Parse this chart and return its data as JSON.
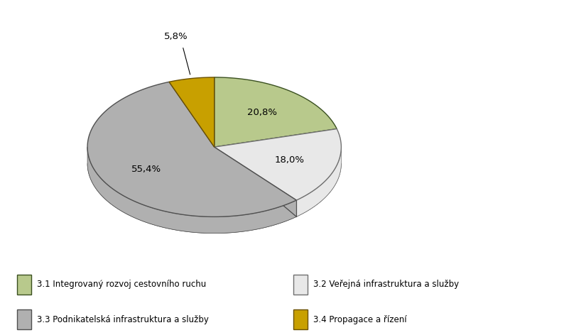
{
  "slices": [
    20.8,
    18.0,
    55.4,
    5.8
  ],
  "labels_pct": [
    "20,8%",
    "18,0%",
    "55,4%",
    "5,8%"
  ],
  "colors": [
    "#b8c98c",
    "#e8e8e8",
    "#b0b0b0",
    "#c8a000"
  ],
  "edge_colors": [
    "#3a5020",
    "#707070",
    "#505050",
    "#6a5000"
  ],
  "legend_labels": [
    "3.1 Integrovaný rozvoj cestovního ruchu",
    "3.2 Veřejná infrastruktura a služby",
    "3.3 Podnikatelská infrastruktura a služby",
    "3.4 Propagace a řízení"
  ],
  "legend_colors": [
    "#b8c98c",
    "#e8e8e8",
    "#b0b0b0",
    "#c8a000"
  ],
  "legend_edge_colors": [
    "#3a5020",
    "#707070",
    "#505050",
    "#6a5000"
  ],
  "background_color": "#ffffff",
  "startangle": 90,
  "shadow_depth": 0.13,
  "yscale": 0.55
}
